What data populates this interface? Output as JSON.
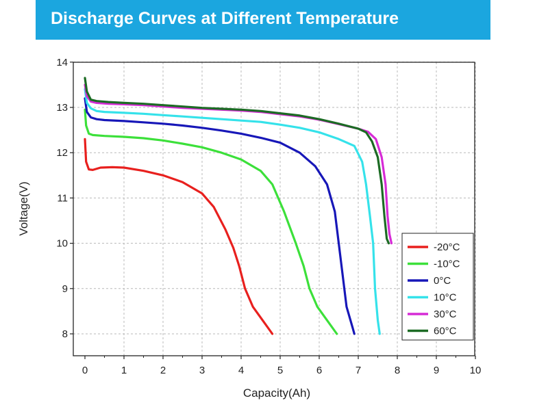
{
  "title": "Discharge Curves at Different Temperature",
  "chart_data": {
    "type": "line",
    "title": "Discharge Curves at Different Temperature",
    "xlabel": "Capacity(Ah)",
    "ylabel": "Voltage(V)",
    "xlim": [
      0,
      10
    ],
    "ylim": [
      8,
      14
    ],
    "xticks": [
      "0",
      "1",
      "2",
      "3",
      "4",
      "5",
      "6",
      "7",
      "8",
      "9",
      "10"
    ],
    "yticks": [
      "8",
      "9",
      "10",
      "11",
      "12",
      "13",
      "14"
    ],
    "grid": true,
    "legend_position": "bottom-right",
    "series": [
      {
        "name": "-20°C",
        "color": "#e8201e",
        "points": [
          [
            0,
            12.3
          ],
          [
            0.03,
            11.8
          ],
          [
            0.1,
            11.63
          ],
          [
            0.2,
            11.62
          ],
          [
            0.4,
            11.67
          ],
          [
            0.7,
            11.68
          ],
          [
            1,
            11.67
          ],
          [
            1.5,
            11.6
          ],
          [
            2,
            11.5
          ],
          [
            2.5,
            11.35
          ],
          [
            3,
            11.1
          ],
          [
            3.3,
            10.8
          ],
          [
            3.6,
            10.3
          ],
          [
            3.8,
            9.9
          ],
          [
            3.95,
            9.5
          ],
          [
            4.1,
            9.0
          ],
          [
            4.3,
            8.6
          ],
          [
            4.55,
            8.3
          ],
          [
            4.8,
            8.0
          ]
        ]
      },
      {
        "name": "-10°C",
        "color": "#3ce03a",
        "points": [
          [
            0,
            12.95
          ],
          [
            0.03,
            12.6
          ],
          [
            0.1,
            12.42
          ],
          [
            0.2,
            12.39
          ],
          [
            0.5,
            12.37
          ],
          [
            1,
            12.35
          ],
          [
            1.5,
            12.32
          ],
          [
            2,
            12.27
          ],
          [
            2.5,
            12.2
          ],
          [
            3,
            12.12
          ],
          [
            3.5,
            12.0
          ],
          [
            4,
            11.85
          ],
          [
            4.5,
            11.6
          ],
          [
            4.8,
            11.3
          ],
          [
            5.1,
            10.7
          ],
          [
            5.4,
            10.0
          ],
          [
            5.6,
            9.5
          ],
          [
            5.75,
            9.0
          ],
          [
            5.95,
            8.6
          ],
          [
            6.2,
            8.3
          ],
          [
            6.45,
            8.0
          ]
        ]
      },
      {
        "name": "0°C",
        "color": "#1717b8",
        "points": [
          [
            0,
            13.2
          ],
          [
            0.05,
            12.9
          ],
          [
            0.15,
            12.78
          ],
          [
            0.3,
            12.74
          ],
          [
            0.5,
            12.72
          ],
          [
            1,
            12.7
          ],
          [
            1.5,
            12.67
          ],
          [
            2,
            12.64
          ],
          [
            2.5,
            12.6
          ],
          [
            3,
            12.55
          ],
          [
            3.5,
            12.49
          ],
          [
            4,
            12.42
          ],
          [
            4.5,
            12.33
          ],
          [
            5,
            12.22
          ],
          [
            5.5,
            12.0
          ],
          [
            5.9,
            11.7
          ],
          [
            6.2,
            11.3
          ],
          [
            6.4,
            10.7
          ],
          [
            6.5,
            10.0
          ],
          [
            6.6,
            9.3
          ],
          [
            6.7,
            8.6
          ],
          [
            6.85,
            8.15
          ],
          [
            6.9,
            8.0
          ]
        ]
      },
      {
        "name": "10°C",
        "color": "#35e2ea",
        "points": [
          [
            0,
            13.4
          ],
          [
            0.05,
            13.1
          ],
          [
            0.15,
            12.98
          ],
          [
            0.3,
            12.92
          ],
          [
            0.5,
            12.9
          ],
          [
            1,
            12.88
          ],
          [
            1.5,
            12.86
          ],
          [
            2,
            12.83
          ],
          [
            2.5,
            12.8
          ],
          [
            3,
            12.77
          ],
          [
            3.5,
            12.74
          ],
          [
            4,
            12.71
          ],
          [
            4.5,
            12.68
          ],
          [
            5,
            12.62
          ],
          [
            5.5,
            12.55
          ],
          [
            6,
            12.45
          ],
          [
            6.5,
            12.3
          ],
          [
            6.9,
            12.15
          ],
          [
            7.1,
            11.8
          ],
          [
            7.2,
            11.3
          ],
          [
            7.3,
            10.6
          ],
          [
            7.38,
            10.0
          ],
          [
            7.43,
            9.0
          ],
          [
            7.5,
            8.3
          ],
          [
            7.55,
            8.0
          ]
        ]
      },
      {
        "name": "30°C",
        "color": "#d62bd6",
        "points": [
          [
            0,
            13.5
          ],
          [
            0.05,
            13.25
          ],
          [
            0.15,
            13.13
          ],
          [
            0.3,
            13.1
          ],
          [
            0.6,
            13.08
          ],
          [
            1,
            13.07
          ],
          [
            1.5,
            13.05
          ],
          [
            2,
            13.02
          ],
          [
            2.5,
            12.99
          ],
          [
            3,
            12.97
          ],
          [
            3.5,
            12.95
          ],
          [
            4,
            12.93
          ],
          [
            4.5,
            12.9
          ],
          [
            5,
            12.85
          ],
          [
            5.5,
            12.8
          ],
          [
            6,
            12.73
          ],
          [
            6.5,
            12.63
          ],
          [
            7,
            12.53
          ],
          [
            7.25,
            12.46
          ],
          [
            7.45,
            12.3
          ],
          [
            7.6,
            11.9
          ],
          [
            7.7,
            11.3
          ],
          [
            7.75,
            10.6
          ],
          [
            7.8,
            10.2
          ],
          [
            7.85,
            10.0
          ]
        ]
      },
      {
        "name": "60°C",
        "color": "#1c6b24",
        "points": [
          [
            0,
            13.65
          ],
          [
            0.05,
            13.35
          ],
          [
            0.15,
            13.17
          ],
          [
            0.3,
            13.14
          ],
          [
            0.6,
            13.12
          ],
          [
            1,
            13.1
          ],
          [
            1.5,
            13.08
          ],
          [
            2,
            13.05
          ],
          [
            2.5,
            13.02
          ],
          [
            3,
            12.99
          ],
          [
            3.5,
            12.97
          ],
          [
            4,
            12.95
          ],
          [
            4.5,
            12.92
          ],
          [
            5,
            12.87
          ],
          [
            5.5,
            12.82
          ],
          [
            6,
            12.74
          ],
          [
            6.5,
            12.64
          ],
          [
            7,
            12.53
          ],
          [
            7.2,
            12.45
          ],
          [
            7.35,
            12.25
          ],
          [
            7.5,
            11.9
          ],
          [
            7.6,
            11.3
          ],
          [
            7.67,
            10.6
          ],
          [
            7.73,
            10.1
          ],
          [
            7.78,
            10.0
          ]
        ]
      }
    ]
  }
}
